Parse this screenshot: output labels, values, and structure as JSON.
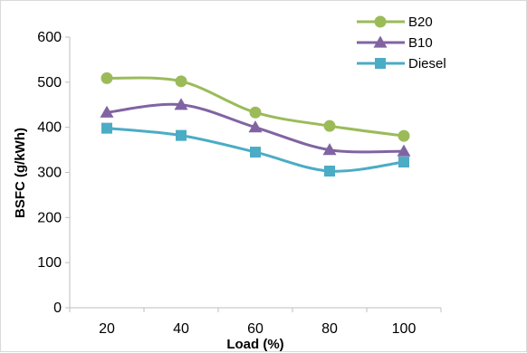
{
  "chart_data": {
    "type": "line",
    "title": "",
    "xlabel": "Load (%)",
    "ylabel": "BSFC (g/kWh)",
    "categories": [
      "20",
      "40",
      "60",
      "80",
      "100"
    ],
    "yticks": [
      "0",
      "100",
      "200",
      "300",
      "400",
      "500",
      "600"
    ],
    "ylim": [
      0,
      600
    ],
    "grid": false,
    "legend_position": "top-right",
    "smoothed": true,
    "series": [
      {
        "name": "B20",
        "values": [
          509,
          502,
          433,
          403,
          381
        ],
        "color": "#9bbb59",
        "marker": "circle"
      },
      {
        "name": "B10",
        "values": [
          433,
          450,
          400,
          350,
          347
        ],
        "color": "#8064a2",
        "marker": "triangle"
      },
      {
        "name": "Diesel",
        "values": [
          398,
          382,
          345,
          303,
          323
        ],
        "color": "#4bacc6",
        "marker": "square"
      }
    ]
  }
}
